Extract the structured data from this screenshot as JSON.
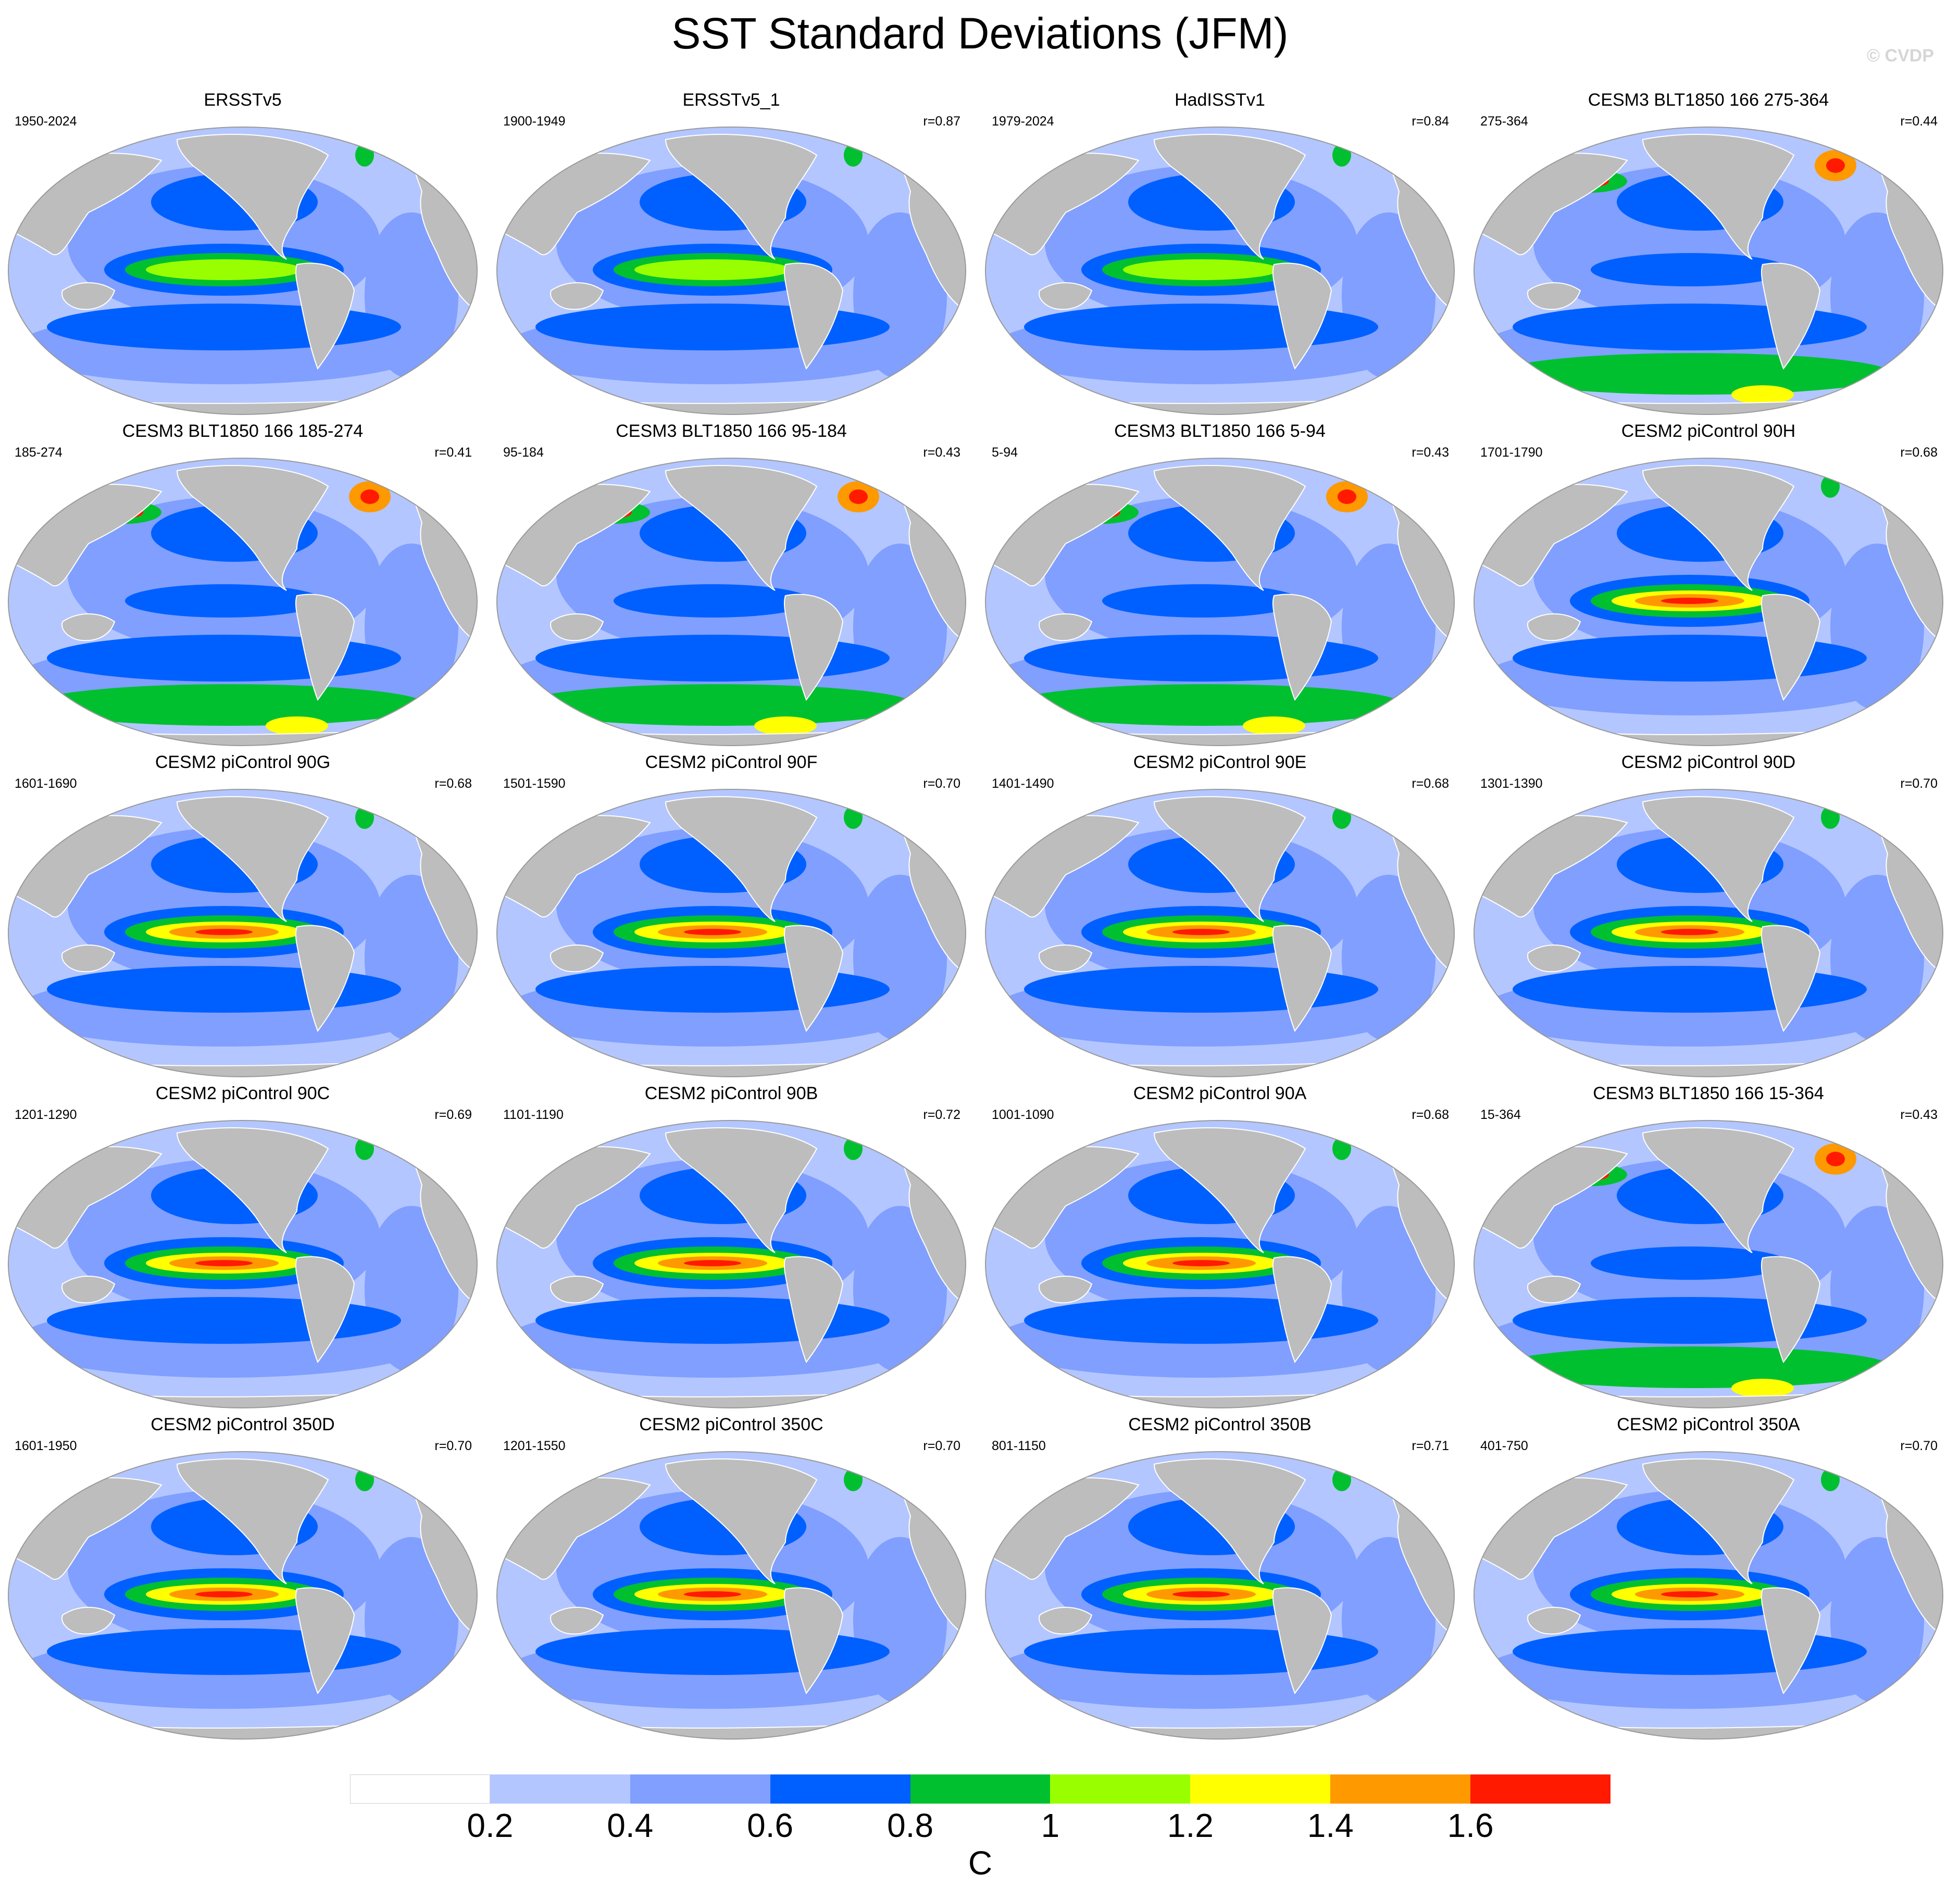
{
  "title": "SST Standard Deviations (JFM)",
  "copyright": "© CVDP",
  "colors": {
    "land": "#bdbdbd",
    "ocean_edge": "#9a9a9a",
    "scale": [
      "#ffffff",
      "#b3c6ff",
      "#809fff",
      "#0060ff",
      "#00c030",
      "#99ff00",
      "#ffff00",
      "#ff9900",
      "#ff1a00"
    ]
  },
  "colorbar": {
    "labels": [
      "0.2",
      "0.4",
      "0.6",
      "0.8",
      "1",
      "1.2",
      "1.4",
      "1.6"
    ],
    "units": "C"
  },
  "panels": [
    {
      "title": "ERSSTv5",
      "period": "1950-2024",
      "corr": ""
    },
    {
      "title": "ERSSTv5_1",
      "period": "1900-1949",
      "corr": "r=0.87"
    },
    {
      "title": "HadISSTv1",
      "period": "1979-2024",
      "corr": "r=0.84"
    },
    {
      "title": "CESM3 BLT1850 166 275-364",
      "period": "275-364",
      "corr": "r=0.44"
    },
    {
      "title": "CESM3 BLT1850 166 185-274",
      "period": "185-274",
      "corr": "r=0.41"
    },
    {
      "title": "CESM3 BLT1850 166 95-184",
      "period": "95-184",
      "corr": "r=0.43"
    },
    {
      "title": "CESM3 BLT1850 166 5-94",
      "period": "5-94",
      "corr": "r=0.43"
    },
    {
      "title": "CESM2 piControl 90H",
      "period": "1701-1790",
      "corr": "r=0.68"
    },
    {
      "title": "CESM2 piControl 90G",
      "period": "1601-1690",
      "corr": "r=0.68"
    },
    {
      "title": "CESM2 piControl 90F",
      "period": "1501-1590",
      "corr": "r=0.70"
    },
    {
      "title": "CESM2 piControl 90E",
      "period": "1401-1490",
      "corr": "r=0.68"
    },
    {
      "title": "CESM2 piControl 90D",
      "period": "1301-1390",
      "corr": "r=0.70"
    },
    {
      "title": "CESM2 piControl 90C",
      "period": "1201-1290",
      "corr": "r=0.69"
    },
    {
      "title": "CESM2 piControl 90B",
      "period": "1101-1190",
      "corr": "r=0.72"
    },
    {
      "title": "CESM2 piControl 90A",
      "period": "1001-1090",
      "corr": "r=0.68"
    },
    {
      "title": "CESM3 BLT1850 166 15-364",
      "period": "15-364",
      "corr": "r=0.43"
    },
    {
      "title": "CESM2 piControl 350D",
      "period": "1601-1950",
      "corr": "r=0.70"
    },
    {
      "title": "CESM2 piControl 350C",
      "period": "1201-1550",
      "corr": "r=0.70"
    },
    {
      "title": "CESM2 piControl 350B",
      "period": "801-1150",
      "corr": "r=0.71"
    },
    {
      "title": "CESM2 piControl 350A",
      "period": "401-750",
      "corr": "r=0.70"
    }
  ]
}
